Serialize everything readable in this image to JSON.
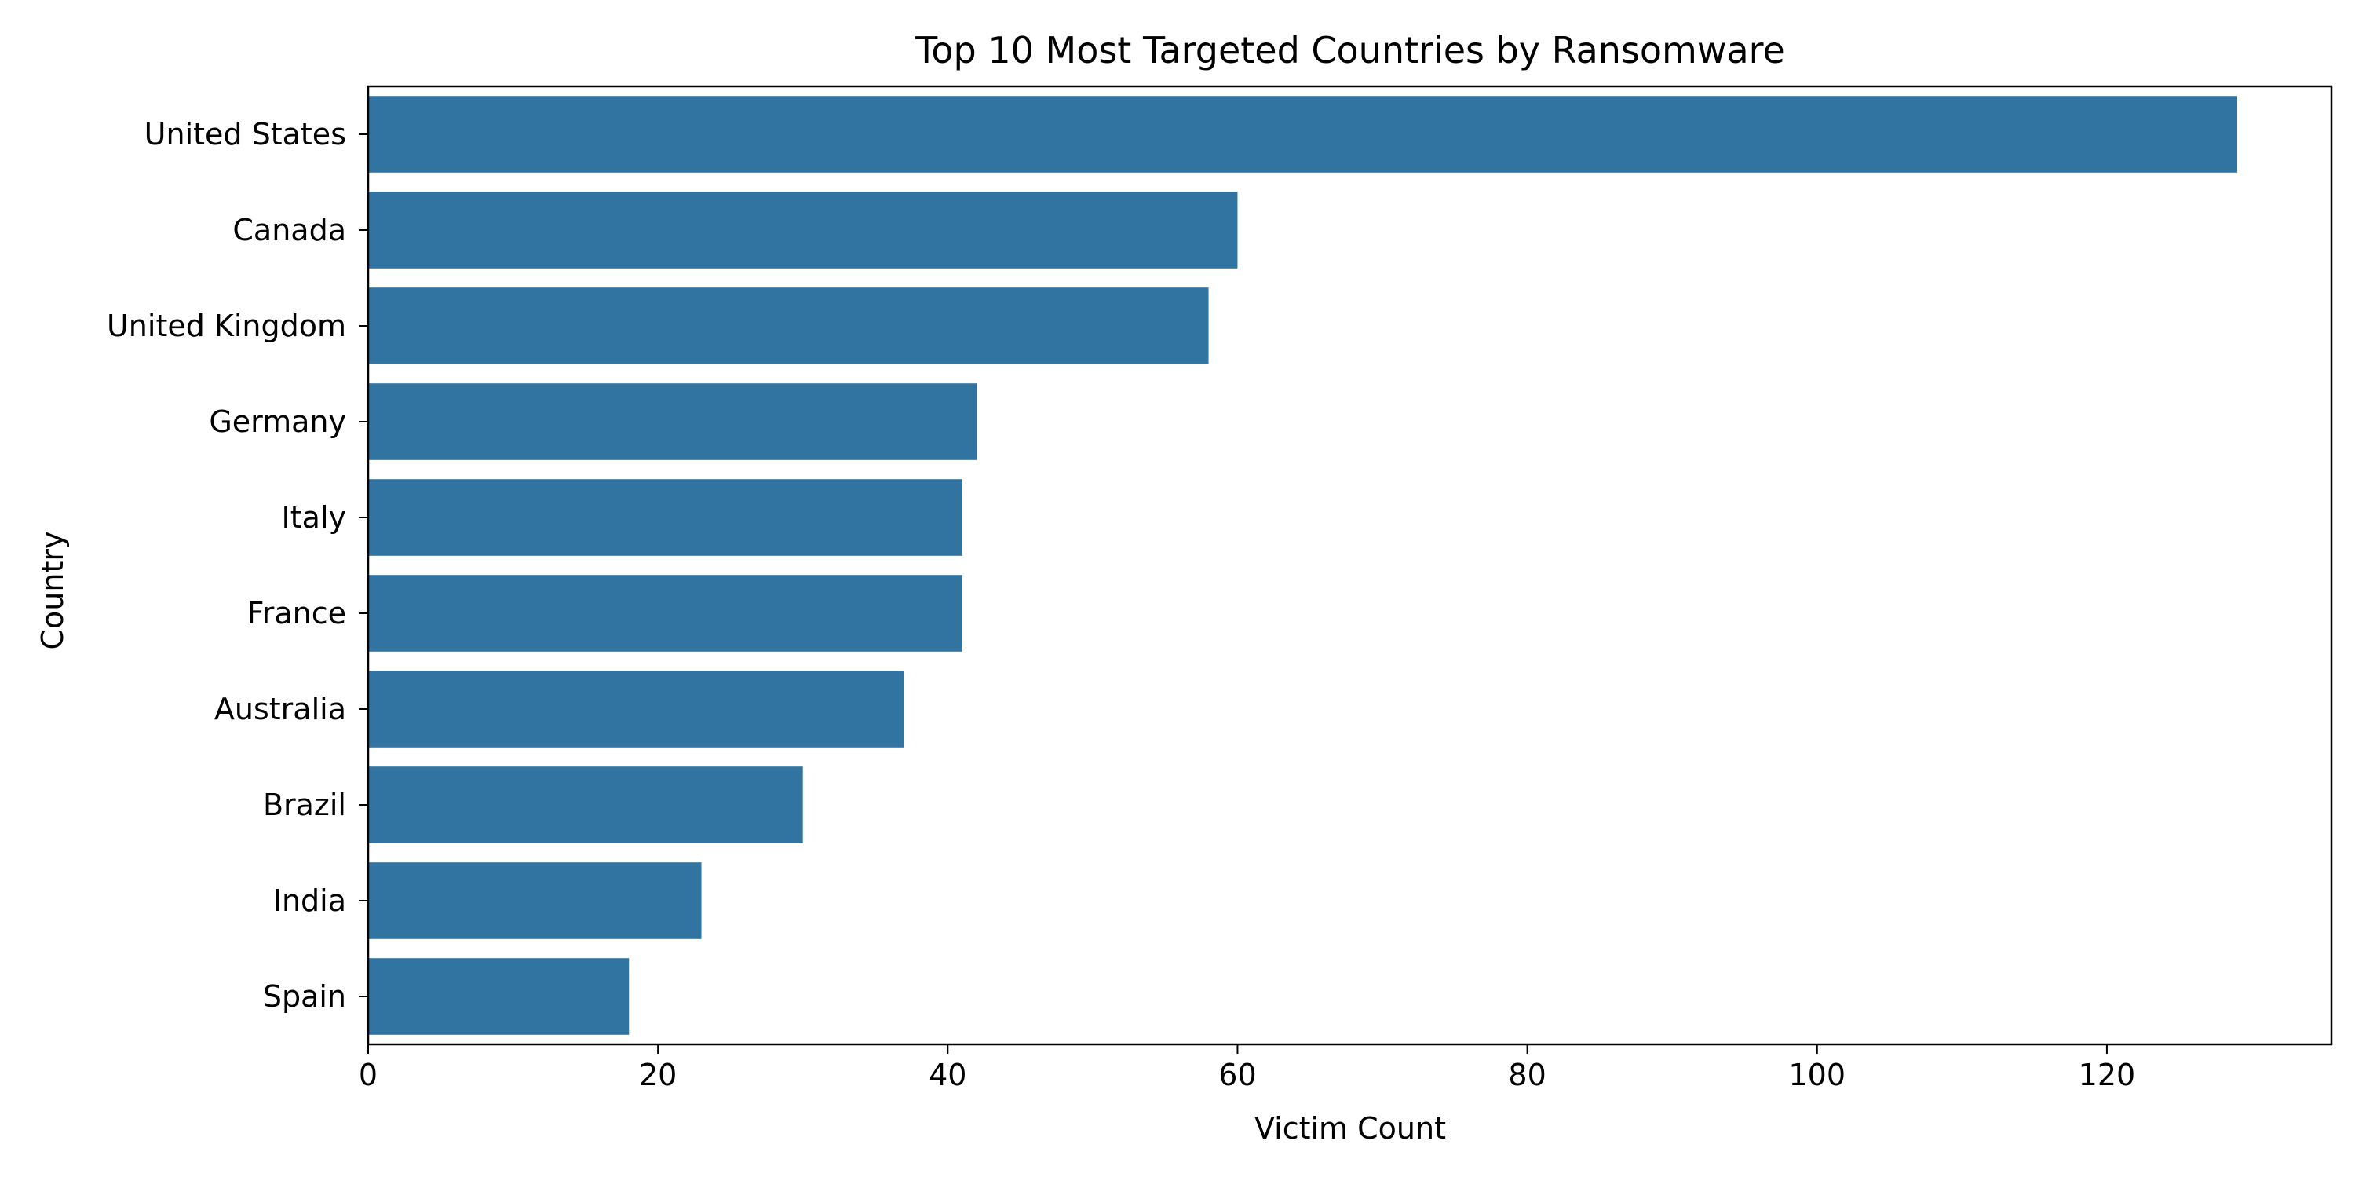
{
  "chart_data": {
    "type": "bar",
    "orientation": "horizontal",
    "title": "Top 10 Most Targeted Countries by Ransomware",
    "xlabel": "Victim Count",
    "ylabel": "Country",
    "categories": [
      "United States",
      "Canada",
      "United Kingdom",
      "Germany",
      "Italy",
      "France",
      "Australia",
      "Brazil",
      "India",
      "Spain"
    ],
    "values": [
      129,
      60,
      58,
      42,
      41,
      41,
      37,
      30,
      23,
      18
    ],
    "xlim": [
      0,
      135.5
    ],
    "xticks": [
      0,
      20,
      40,
      60,
      80,
      100,
      120
    ],
    "grid": false,
    "legend": "none",
    "bar_color": "#3274a1"
  }
}
